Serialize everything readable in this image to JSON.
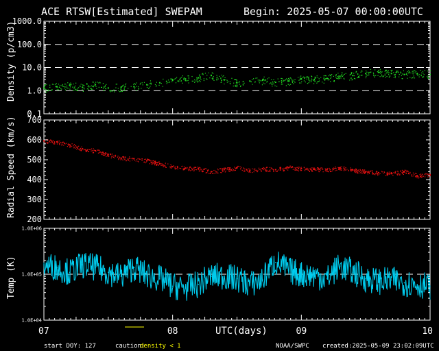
{
  "header": {
    "title": "ACE RTSW[Estimated] SWEPAM",
    "begin": "Begin: 2025-05-07 00:00:00UTC"
  },
  "footer": {
    "start_doy": "start DOY: 127",
    "caution_label": "caution:",
    "caution_value": "density < 1",
    "xaxis_label": "UTC(days)",
    "source": "NOAA/SWPC",
    "created": "created:2025-05-09 23:02:09UTC"
  },
  "colors": {
    "background": "#000000",
    "density": "#22dd22",
    "speed": "#ee1111",
    "temp": "#00ccee",
    "caution": "#ffff00",
    "text": "#ffffff"
  },
  "chart_data": [
    {
      "type": "scatter",
      "ylabel": "Density (p/cm3)",
      "yscale": "log",
      "ylim": [
        0.1,
        1000
      ],
      "yticks": [
        "1000.0",
        "100.0",
        "10.0",
        "1.0",
        "0.1"
      ],
      "reference_lines": [
        100,
        10,
        1
      ],
      "xlim": [
        7,
        10
      ],
      "xticks": [
        "07",
        "08",
        "09",
        "10"
      ],
      "x": [
        7.0,
        7.1,
        7.2,
        7.3,
        7.4,
        7.5,
        7.6,
        7.7,
        7.8,
        7.9,
        8.0,
        8.1,
        8.2,
        8.3,
        8.4,
        8.5,
        8.6,
        8.7,
        8.8,
        8.9,
        9.0,
        9.1,
        9.2,
        9.3,
        9.4,
        9.5,
        9.6,
        9.7,
        9.8,
        9.9,
        10.0
      ],
      "y": [
        1.3,
        1.5,
        1.7,
        1.4,
        1.8,
        1.3,
        1.4,
        1.5,
        1.8,
        2.2,
        2.8,
        3.2,
        3.6,
        4.5,
        3.0,
        2.2,
        2.6,
        2.8,
        2.3,
        2.6,
        3.2,
        3.0,
        3.4,
        4.2,
        4.5,
        5.5,
        6.2,
        5.5,
        5.0,
        5.5,
        5.0
      ]
    },
    {
      "type": "scatter",
      "ylabel": "Radial Speed (km/s)",
      "ylim": [
        200,
        700
      ],
      "yticks": [
        "700",
        "600",
        "500",
        "400",
        "300",
        "200"
      ],
      "xlim": [
        7,
        10
      ],
      "x": [
        7.0,
        7.1,
        7.2,
        7.3,
        7.4,
        7.5,
        7.6,
        7.7,
        7.8,
        7.9,
        8.0,
        8.1,
        8.2,
        8.3,
        8.4,
        8.5,
        8.6,
        8.7,
        8.8,
        8.9,
        9.0,
        9.1,
        9.2,
        9.3,
        9.4,
        9.5,
        9.6,
        9.7,
        9.8,
        9.9,
        10.0
      ],
      "y": [
        595,
        590,
        575,
        555,
        545,
        525,
        508,
        505,
        495,
        480,
        465,
        458,
        455,
        440,
        450,
        460,
        445,
        455,
        450,
        460,
        455,
        452,
        450,
        460,
        448,
        440,
        435,
        430,
        440,
        420,
        425
      ]
    },
    {
      "type": "line",
      "ylabel": "Temp (K)",
      "yscale": "log",
      "ylim": [
        10000,
        1000000
      ],
      "yticks": [
        "1.0E+06",
        "1.0E+05",
        "1.0E+04"
      ],
      "reference_lines": [
        100000
      ],
      "xlim": [
        7,
        10
      ],
      "x": [
        7.0,
        7.1,
        7.2,
        7.3,
        7.4,
        7.5,
        7.6,
        7.7,
        7.8,
        7.9,
        8.0,
        8.1,
        8.2,
        8.3,
        8.4,
        8.5,
        8.6,
        8.7,
        8.8,
        8.9,
        9.0,
        9.1,
        9.2,
        9.3,
        9.4,
        9.5,
        9.6,
        9.7,
        9.8,
        9.9,
        10.0
      ],
      "y": [
        160000,
        140000,
        110000,
        160000,
        140000,
        110000,
        90000,
        140000,
        95000,
        80000,
        55000,
        50000,
        60000,
        90000,
        90000,
        80000,
        60000,
        75000,
        180000,
        120000,
        100000,
        95000,
        80000,
        150000,
        110000,
        80000,
        70000,
        75000,
        65000,
        60000,
        55000
      ]
    }
  ]
}
